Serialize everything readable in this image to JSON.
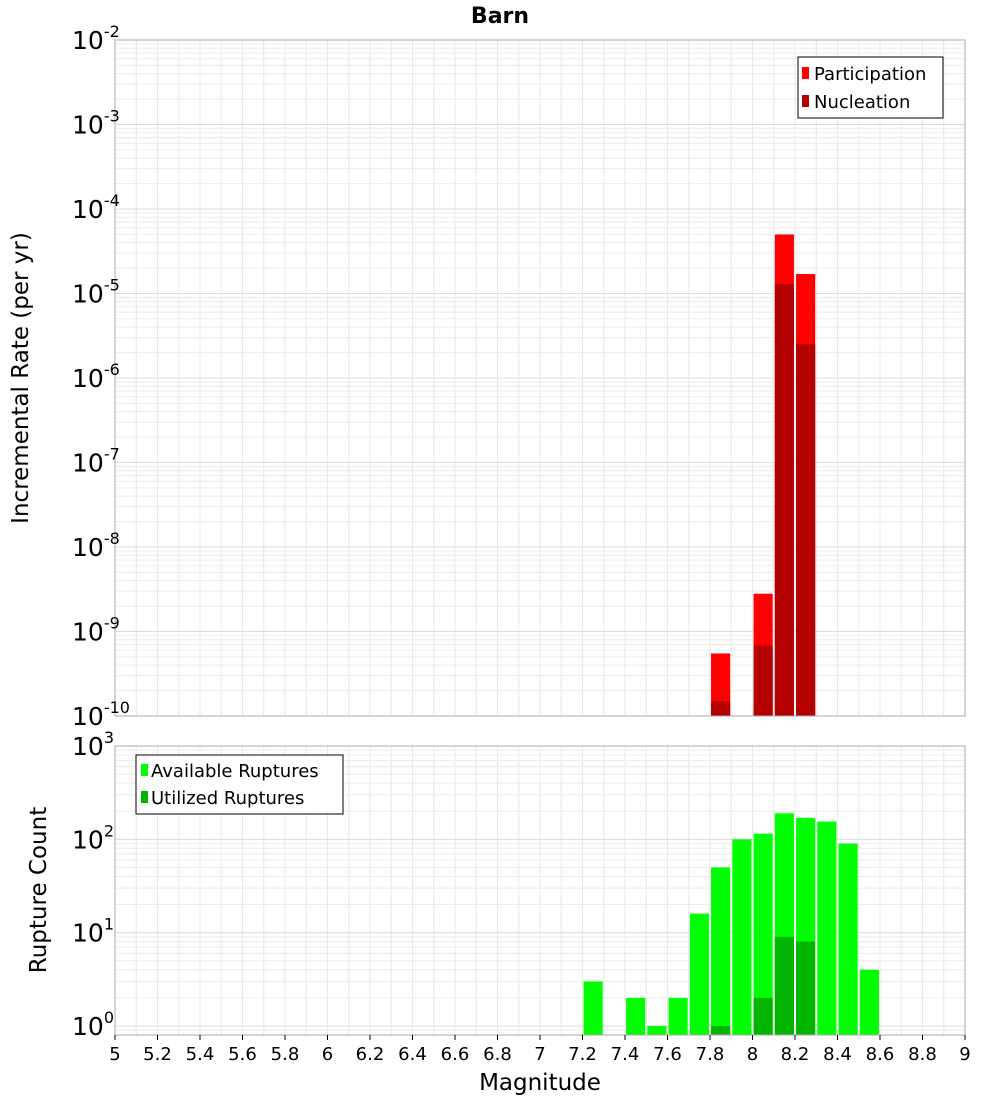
{
  "chart_data": [
    {
      "type": "bar",
      "title": "Barn",
      "xlabel": "Magnitude",
      "ylabel": "Incremental Rate (per yr)",
      "yscale": "log",
      "ylim": [
        1e-10,
        0.01
      ],
      "xlim": [
        5,
        9
      ],
      "grid": true,
      "legend_position": "top-right",
      "bar_width": 0.09,
      "series": [
        {
          "name": "Participation",
          "color": "#ff0000",
          "x": [
            7.85,
            8.05,
            8.15,
            8.25
          ],
          "values": [
            5.5e-10,
            2.8e-09,
            5e-05,
            1.7e-05
          ]
        },
        {
          "name": "Nucleation",
          "color": "#b40000",
          "x": [
            7.85,
            8.05,
            8.15,
            8.25
          ],
          "values": [
            1.5e-10,
            6.8e-10,
            1.3e-05,
            2.5e-06
          ]
        }
      ]
    },
    {
      "type": "bar",
      "xlabel": "Magnitude",
      "ylabel": "Rupture Count",
      "yscale": "log",
      "ylim": [
        0.8,
        1000
      ],
      "xlim": [
        5,
        9
      ],
      "grid": true,
      "legend_position": "top-left",
      "bar_width": 0.09,
      "series": [
        {
          "name": "Available Ruptures",
          "color": "#00ff00",
          "x": [
            7.25,
            7.45,
            7.55,
            7.65,
            7.75,
            7.85,
            7.95,
            8.05,
            8.15,
            8.25,
            8.35,
            8.45,
            8.55
          ],
          "values": [
            3,
            2,
            1,
            2,
            16,
            50,
            100,
            115,
            190,
            170,
            155,
            90,
            4
          ]
        },
        {
          "name": "Utilized Ruptures",
          "color": "#00b400",
          "x": [
            7.85,
            8.05,
            8.15,
            8.25
          ],
          "values": [
            1,
            2,
            9,
            8
          ]
        }
      ]
    }
  ],
  "axis": {
    "x_ticks": [
      "5",
      "5.2",
      "5.4",
      "5.6",
      "5.8",
      "6",
      "6.2",
      "6.4",
      "6.6",
      "6.8",
      "7",
      "7.2",
      "7.4",
      "7.6",
      "7.8",
      "8",
      "8.2",
      "8.4",
      "8.6",
      "8.8",
      "9"
    ],
    "top_y_ticks": [
      {
        "base": "10",
        "exp": "-2"
      },
      {
        "base": "10",
        "exp": "-3"
      },
      {
        "base": "10",
        "exp": "-4"
      },
      {
        "base": "10",
        "exp": "-5"
      },
      {
        "base": "10",
        "exp": "-6"
      },
      {
        "base": "10",
        "exp": "-7"
      },
      {
        "base": "10",
        "exp": "-8"
      },
      {
        "base": "10",
        "exp": "-9"
      },
      {
        "base": "10",
        "exp": "-10"
      }
    ],
    "bottom_y_ticks": [
      {
        "base": "10",
        "exp": "3"
      },
      {
        "base": "10",
        "exp": "2"
      },
      {
        "base": "10",
        "exp": "1"
      },
      {
        "base": "10",
        "exp": "0"
      }
    ]
  }
}
